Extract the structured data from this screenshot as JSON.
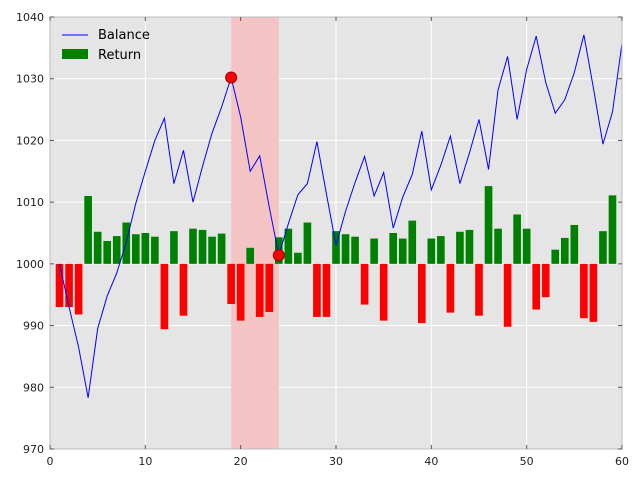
{
  "chart_data": {
    "type": "bar",
    "title": "",
    "xlabel": "",
    "ylabel": "",
    "xlim": [
      0,
      60
    ],
    "ylim": [
      970,
      1040
    ],
    "xticks": [
      "0",
      "10",
      "20",
      "30",
      "40",
      "50",
      "60"
    ],
    "yticks": [
      "970",
      "980",
      "990",
      "1000",
      "1010",
      "1020",
      "1030",
      "1040"
    ],
    "grid": true,
    "legend_position": "top-left",
    "colors": {
      "plot_background": "#e5e5e5",
      "grid": "#ffffff",
      "balance_line": "#0000ff",
      "positive_return": "#008000",
      "negative_return": "#ff0000",
      "highlight_band": "#f4c4c4",
      "marker_fill": "#ff0000",
      "marker_edge": "#990000"
    },
    "legend": [
      {
        "label": "Balance",
        "kind": "line",
        "color": "#0000ff"
      },
      {
        "label": "Return",
        "kind": "bar",
        "color": "#008000"
      }
    ],
    "highlight_region": {
      "x_start": 19,
      "x_end": 24
    },
    "markers": [
      {
        "x": 19,
        "y": 1030.2
      },
      {
        "x": 24,
        "y": 1001.4
      }
    ],
    "series": [
      {
        "name": "Balance",
        "type": "line",
        "x": [
          1,
          2,
          3,
          4,
          5,
          6,
          7,
          8,
          9,
          10,
          11,
          12,
          13,
          14,
          15,
          16,
          17,
          18,
          19,
          20,
          21,
          22,
          23,
          24,
          25,
          26,
          27,
          28,
          29,
          30,
          31,
          32,
          33,
          34,
          35,
          36,
          37,
          38,
          39,
          40,
          41,
          42,
          43,
          44,
          45,
          46,
          47,
          48,
          49,
          50,
          51,
          52,
          53,
          54,
          55,
          56,
          57,
          58,
          59,
          60
        ],
        "values": [
          1000,
          993,
          986.5,
          978.3,
          989.5,
          994.8,
          998.5,
          1003.5,
          1009.8,
          1015,
          1020,
          1023.6,
          1013,
          1018.4,
          1010,
          1015.8,
          1021.2,
          1025.4,
          1030.2,
          1023.8,
          1015,
          1017.5,
          1009.2,
          1001.4,
          1006.5,
          1011.2,
          1013,
          1019.8,
          1011.3,
          1003,
          1008.5,
          1013.2,
          1017.4,
          1011,
          1014.8,
          1005.8,
          1010.8,
          1014.5,
          1021.5,
          1012,
          1016,
          1020.7,
          1013,
          1018,
          1023.4,
          1015.3,
          1028.2,
          1033.6,
          1023.4,
          1031.5,
          1036.9,
          1029.4,
          1024.4,
          1026.6,
          1031,
          1037.1,
          1028.5,
          1019.4,
          1024.6,
          1035.7
        ]
      },
      {
        "name": "Return",
        "type": "bar",
        "x": [
          1,
          2,
          3,
          4,
          5,
          6,
          7,
          8,
          9,
          10,
          11,
          12,
          13,
          14,
          15,
          16,
          17,
          18,
          19,
          20,
          21,
          22,
          23,
          24,
          25,
          26,
          27,
          28,
          29,
          30,
          31,
          32,
          33,
          34,
          35,
          36,
          37,
          38,
          39,
          40,
          41,
          42,
          43,
          44,
          45,
          46,
          47,
          48,
          49,
          50,
          51,
          52,
          53,
          54,
          55,
          56,
          57,
          58,
          59,
          60
        ],
        "values": [
          -7,
          -7,
          -8.2,
          11,
          5.2,
          3.7,
          4.5,
          6.7,
          4.8,
          5,
          4.4,
          -10.6,
          5.3,
          -8.4,
          5.7,
          5.5,
          4.4,
          4.9,
          -6.5,
          -9.2,
          2.6,
          -8.6,
          -7.8,
          4.3,
          5.7,
          1.8,
          6.7,
          -8.6,
          -8.6,
          5.3,
          4.8,
          4.4,
          -6.6,
          4.1,
          -9.2,
          5,
          4.1,
          7,
          -9.6,
          4.1,
          4.5,
          -7.9,
          5.2,
          5.5,
          -8.4,
          12.6,
          5.7,
          -10.2,
          8,
          5.7,
          -7.4,
          -5.4,
          2.3,
          4.2,
          6.3,
          -8.8,
          -9.4,
          5.3,
          11.1,
          0
        ]
      }
    ]
  }
}
